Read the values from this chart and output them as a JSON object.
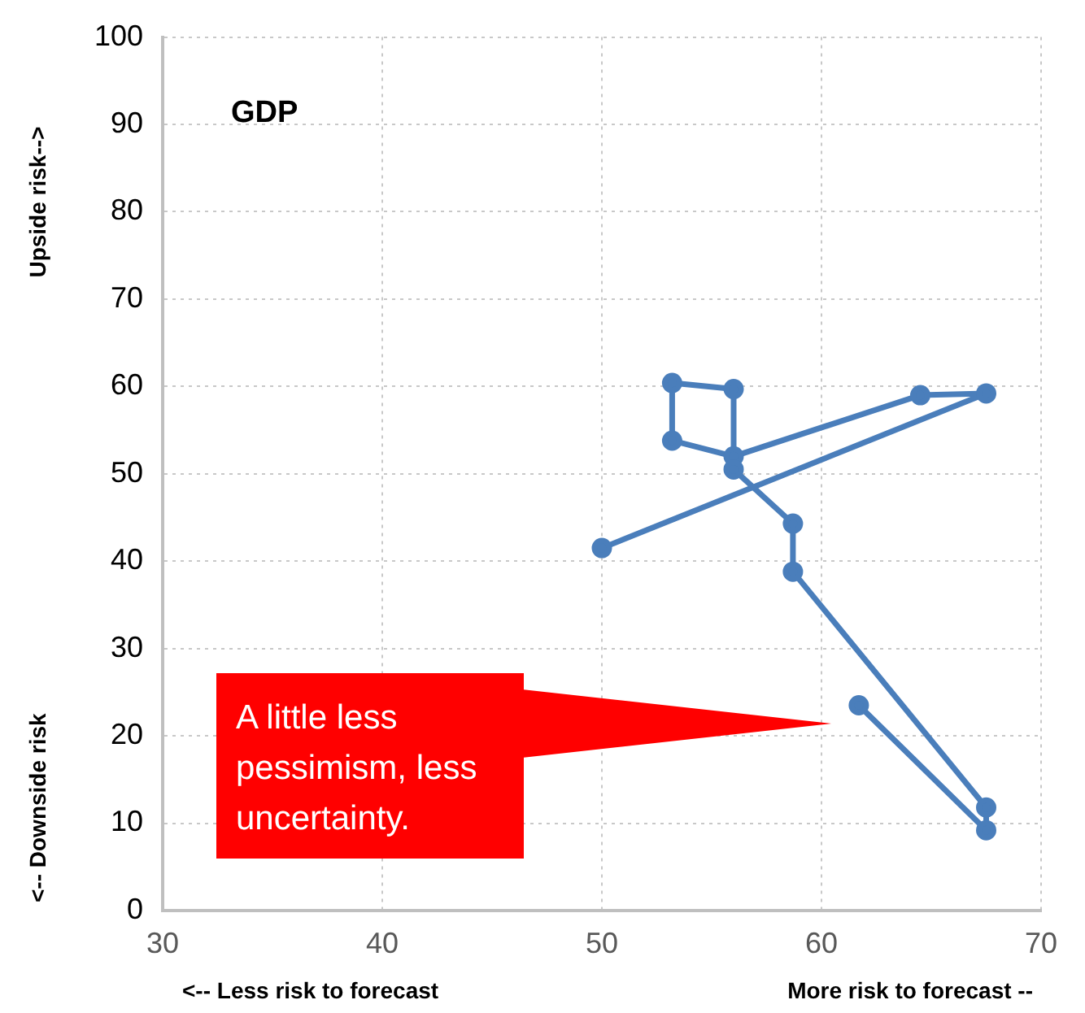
{
  "chart_data": {
    "type": "line",
    "title": "GDP",
    "xlabel": "<-- Less risk to forecast",
    "ylabel": "<-- Downside risk",
    "annotations": [
      "More risk to forecast --",
      "Upside risk-->",
      "A little less pessimism, less uncertainty."
    ],
    "series": [
      {
        "color": "#4a7ebb",
        "x": [
          50,
          67.5,
          64.5,
          56,
          53.2,
          53.2,
          56,
          56,
          58.7,
          58.7,
          67.5,
          67.5,
          61.7
        ],
        "values": [
          41.5,
          59.2,
          59,
          52,
          53.8,
          60.4,
          59.7,
          50.5,
          44.3,
          38.8,
          11.8,
          9.2,
          23.5
        ]
      }
    ],
    "xlim": [
      30,
      70
    ],
    "xticks": [
      30,
      40,
      50,
      60,
      70
    ],
    "ylim": [
      0,
      100
    ],
    "yticks": [
      0,
      10,
      20,
      30,
      40,
      50,
      60,
      70,
      80,
      90,
      100
    ],
    "grid": true,
    "legend": false,
    "marker": "circle",
    "line_style": "solid"
  }
}
